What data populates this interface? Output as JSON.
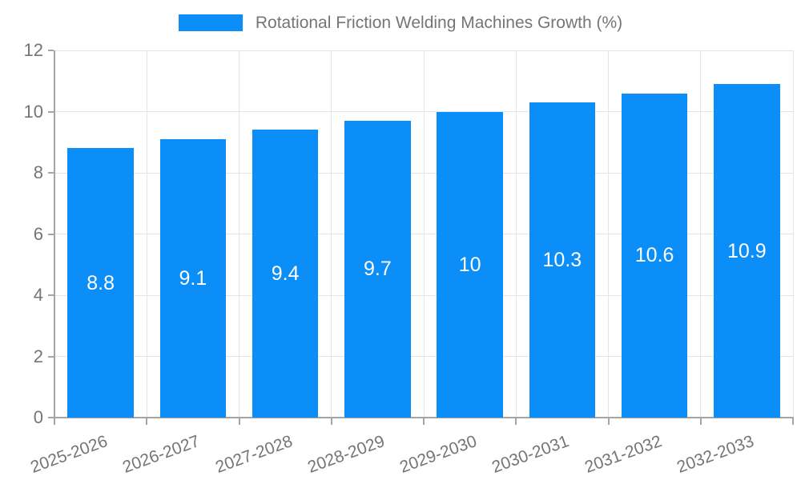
{
  "chart_data": {
    "type": "bar",
    "title": "",
    "legend": "Rotational Friction Welding Machines Growth (%)",
    "legend_position": "top-center",
    "categories": [
      "2025-2026",
      "2026-2027",
      "2027-2028",
      "2028-2029",
      "2029-2030",
      "2030-2031",
      "2031-2032",
      "2032-2033"
    ],
    "values": [
      8.8,
      9.1,
      9.4,
      9.7,
      10,
      10.3,
      10.6,
      10.9
    ],
    "value_labels": [
      "8.8",
      "9.1",
      "9.4",
      "9.7",
      "10",
      "10.3",
      "10.6",
      "10.9"
    ],
    "xlabel": "",
    "ylabel": "",
    "ylim": [
      0,
      12
    ],
    "ytick_step": 2,
    "ytick_labels": [
      "0",
      "2",
      "4",
      "6",
      "8",
      "10",
      "12"
    ],
    "grid": true,
    "colors": {
      "bar": "#0c8ef8",
      "grid": "#e5e5e5",
      "axis": "#a5a5a5",
      "tick_text": "#757575",
      "value_text": "#ffffff",
      "background": "#ffffff"
    }
  }
}
